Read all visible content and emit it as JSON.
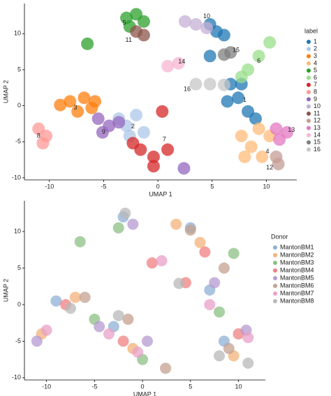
{
  "chart_data": [
    {
      "type": "scatter",
      "xlabel": "UMAP 1",
      "ylabel": "UMAP 2",
      "legend_title": "label",
      "xlim": [
        -12.3,
        12.8
      ],
      "ylim": [
        -10.3,
        14.2
      ],
      "xticks": [
        -10,
        -5,
        0,
        5,
        10
      ],
      "yticks": [
        -10,
        -5,
        0,
        5,
        10
      ],
      "series": [
        {
          "name": "1",
          "color": "#1f77b4",
          "x": [
            5.4,
            4.8,
            6.1,
            6.7,
            7.4,
            6.4,
            8.3,
            9.0,
            4.8,
            7.7
          ],
          "y": [
            10.3,
            11.3,
            9.8,
            3.0,
            1.1,
            0.6,
            -0.8,
            -1.8,
            6.9,
            3.0
          ]
        },
        {
          "name": "2",
          "color": "#aec7e8",
          "x": [
            -2.9,
            -2.0,
            -3.6,
            -1.3,
            -2.6
          ],
          "y": [
            -2.8,
            -1.3,
            -1.8,
            -3.7,
            -4.2
          ]
        },
        {
          "name": "3",
          "color": "#ff7f0e",
          "x": [
            -9.0,
            -8.1,
            -6.8,
            -5.8,
            -7.4,
            -6.1
          ],
          "y": [
            0.1,
            0.6,
            1.1,
            0.6,
            -0.8,
            -0.3
          ]
        },
        {
          "name": "4",
          "color": "#ffbb78",
          "x": [
            7.7,
            8.6,
            9.6,
            8.0,
            10.3,
            9.3
          ],
          "y": [
            -4.2,
            -5.7,
            -7.1,
            -7.1,
            -4.2,
            -3.2
          ]
        },
        {
          "name": "5",
          "color": "#2ca02c",
          "x": [
            -2.9,
            -2.0,
            -1.3,
            -2.6,
            -6.5
          ],
          "y": [
            12.2,
            12.7,
            11.7,
            11.0,
            8.6
          ]
        },
        {
          "name": "6",
          "color": "#98df8a",
          "x": [
            10.3,
            9.3,
            8.3,
            7.7
          ],
          "y": [
            8.8,
            6.9,
            5.0,
            4.0
          ]
        },
        {
          "name": "7",
          "color": "#d62728",
          "x": [
            -1.6,
            -0.4,
            0.9,
            -2.3,
            -0.4,
            0.4
          ],
          "y": [
            -6.1,
            -7.1,
            -6.1,
            -5.2,
            -8.4,
            -0.8
          ]
        },
        {
          "name": "8",
          "color": "#ff9896",
          "x": [
            -11.0,
            -10.3,
            -10.6
          ],
          "y": [
            -3.2,
            -4.2,
            -5.2
          ]
        },
        {
          "name": "9",
          "color": "#9467bd",
          "x": [
            -5.5,
            -4.5,
            -5.1,
            -3.6,
            2.4
          ],
          "y": [
            -1.8,
            -2.8,
            -3.7,
            -2.3,
            -8.7
          ]
        },
        {
          "name": "10",
          "color": "#c5b0d5",
          "x": [
            3.5,
            4.5,
            2.5
          ],
          "y": [
            11.3,
            10.8,
            11.7
          ]
        },
        {
          "name": "11",
          "color": "#8c564b",
          "x": [
            -2.0,
            -1.3
          ],
          "y": [
            10.3,
            9.8
          ]
        },
        {
          "name": "12",
          "color": "#c49c94",
          "x": [
            10.9,
            11.1
          ],
          "y": [
            -7.1,
            -8.1
          ]
        },
        {
          "name": "13",
          "color": "#e377c2",
          "x": [
            10.9,
            11.9,
            11.2
          ],
          "y": [
            -3.2,
            -3.7,
            -4.7
          ]
        },
        {
          "name": "14",
          "color": "#f7b6d2",
          "x": [
            0.9,
            1.9
          ],
          "y": [
            5.5,
            5.9
          ]
        },
        {
          "name": "15",
          "color": "#7f7f7f",
          "x": [
            6.1,
            6.7
          ],
          "y": [
            7.1,
            7.4
          ]
        },
        {
          "name": "16",
          "color": "#c7c7c7",
          "x": [
            3.5,
            4.8,
            6.1
          ],
          "y": [
            3.0,
            3.0,
            2.9
          ]
        }
      ],
      "annotations": [
        {
          "text": "1",
          "x": 8.0,
          "y": 0.8
        },
        {
          "text": "2",
          "x": -2.3,
          "y": -2.9
        },
        {
          "text": "3",
          "x": -7.6,
          "y": -0.3
        },
        {
          "text": "4",
          "x": 10.1,
          "y": -6.4
        },
        {
          "text": "5",
          "x": -3.1,
          "y": 11.5
        },
        {
          "text": "6",
          "x": 9.3,
          "y": 6.2
        },
        {
          "text": "7",
          "x": 0.6,
          "y": -4.7
        },
        {
          "text": "8",
          "x": -11.0,
          "y": -4.2
        },
        {
          "text": "9",
          "x": -5.0,
          "y": -3.7
        },
        {
          "text": "10",
          "x": 4.5,
          "y": 12.4
        },
        {
          "text": "11",
          "x": -2.7,
          "y": 9.1
        },
        {
          "text": "12",
          "x": 10.3,
          "y": -8.6
        },
        {
          "text": "13",
          "x": 12.3,
          "y": -3.4
        },
        {
          "text": "14",
          "x": 2.2,
          "y": 6.1
        },
        {
          "text": "15",
          "x": 7.2,
          "y": 7.7
        },
        {
          "text": "16",
          "x": 2.7,
          "y": 2.3
        }
      ]
    },
    {
      "type": "scatter",
      "xlabel": "UMAP 1",
      "ylabel": "UMAP 2",
      "legend_title": "Donor",
      "xlim": [
        -12.3,
        12.8
      ],
      "ylim": [
        -10.3,
        14.2
      ],
      "xticks": [
        -10,
        -5,
        0,
        5,
        10
      ],
      "yticks": [
        -10,
        -5,
        0,
        5,
        10
      ],
      "series": [
        {
          "name": "MantonBM1",
          "color": "#8fb0d6",
          "x": [
            -9,
            -3,
            5,
            8.5,
            -2,
            7
          ],
          "y": [
            0.5,
            -3,
            10.5,
            -5,
            12,
            2
          ]
        },
        {
          "name": "MantonBM2",
          "color": "#f4b27a",
          "x": [
            -7,
            -1,
            9.5,
            3.5,
            6,
            -10.5
          ],
          "y": [
            1,
            -6,
            -7,
            11,
            8.5,
            -4
          ]
        },
        {
          "name": "MantonBM3",
          "color": "#8cc084",
          "x": [
            -5,
            0,
            8,
            9.5,
            -2.5,
            -6.5
          ],
          "y": [
            -2,
            -7.5,
            -1,
            7,
            10.5,
            8.6
          ]
        },
        {
          "name": "MantonBM4",
          "color": "#f08080",
          "x": [
            -8,
            -2,
            10,
            4.5,
            6.5,
            1
          ],
          "y": [
            0,
            -5,
            -4,
            3,
            7.2,
            5.7
          ]
        },
        {
          "name": "MantonBM5",
          "color": "#b59ad0",
          "x": [
            -4.5,
            0.5,
            7.5,
            10.8,
            -1,
            -11
          ],
          "y": [
            -3,
            -5,
            3,
            -3.5,
            11,
            -5
          ]
        },
        {
          "name": "MantonBM6",
          "color": "#c4a090",
          "x": [
            -6,
            -1.5,
            9,
            5,
            8.5,
            2.4
          ],
          "y": [
            1,
            -2,
            -6,
            10.2,
            5,
            -8.7
          ]
        },
        {
          "name": "MantonBM7",
          "color": "#e8a0c8",
          "x": [
            -3.5,
            -0.5,
            11,
            2,
            -10,
            7
          ],
          "y": [
            -4,
            -6.5,
            -4.5,
            6,
            -3.5,
            0
          ]
        },
        {
          "name": "MantonBM8",
          "color": "#b8b8b8",
          "x": [
            -7.5,
            -2.5,
            8,
            3.8,
            11,
            -1.8
          ],
          "y": [
            -0.5,
            -1.5,
            -7,
            2.9,
            -8,
            12.5
          ]
        }
      ]
    }
  ]
}
